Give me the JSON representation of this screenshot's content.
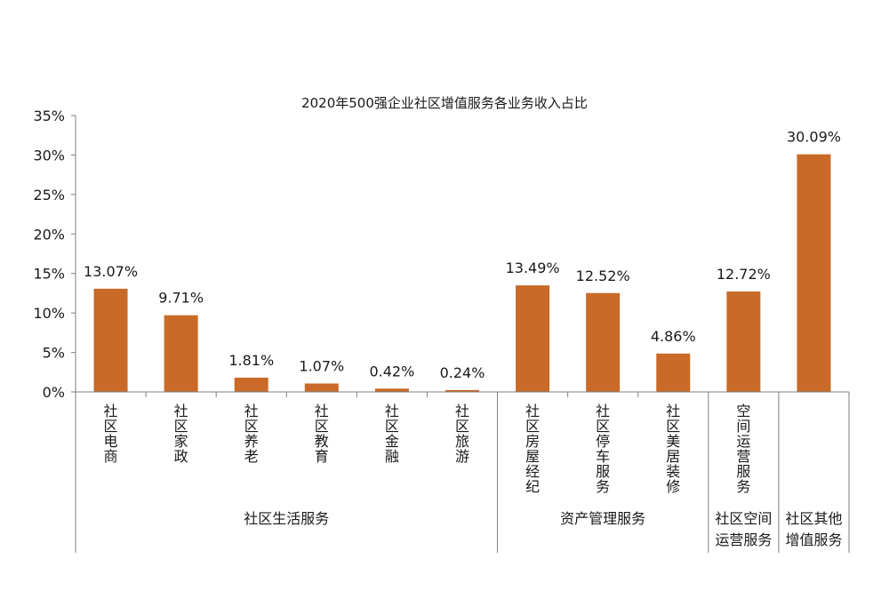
{
  "chart_data": {
    "type": "bar",
    "title": "2020年500强企业社区增值服务各业务收入占比",
    "xlabel": "",
    "ylabel": "",
    "ylim": [
      0,
      35
    ],
    "yticks": [
      "0%",
      "5%",
      "10%",
      "15%",
      "20%",
      "25%",
      "30%",
      "35%"
    ],
    "grid": false,
    "bar_color": "#c96a28",
    "categories": [
      "社区电商",
      "社区家政",
      "社区养老",
      "社区教育",
      "社区金融",
      "社区旅游",
      "社区房屋经纪",
      "社区停车服务",
      "社区美居装修",
      "空间运营服务",
      ""
    ],
    "values": [
      13.07,
      9.71,
      1.81,
      1.07,
      0.42,
      0.24,
      13.49,
      12.52,
      4.86,
      12.72,
      30.09
    ],
    "data_labels": [
      "13.07%",
      "9.71%",
      "1.81%",
      "1.07%",
      "0.42%",
      "0.24%",
      "13.49%",
      "12.52%",
      "4.86%",
      "12.72%",
      "30.09%"
    ],
    "groups": [
      {
        "label_lines": [
          "社区生活服务"
        ],
        "start": 0,
        "end": 5
      },
      {
        "label_lines": [
          "资产管理服务"
        ],
        "start": 6,
        "end": 8
      },
      {
        "label_lines": [
          "社区空间",
          "运营服务"
        ],
        "start": 9,
        "end": 9
      },
      {
        "label_lines": [
          "社区其他",
          "增值服务"
        ],
        "start": 10,
        "end": 10
      }
    ]
  }
}
